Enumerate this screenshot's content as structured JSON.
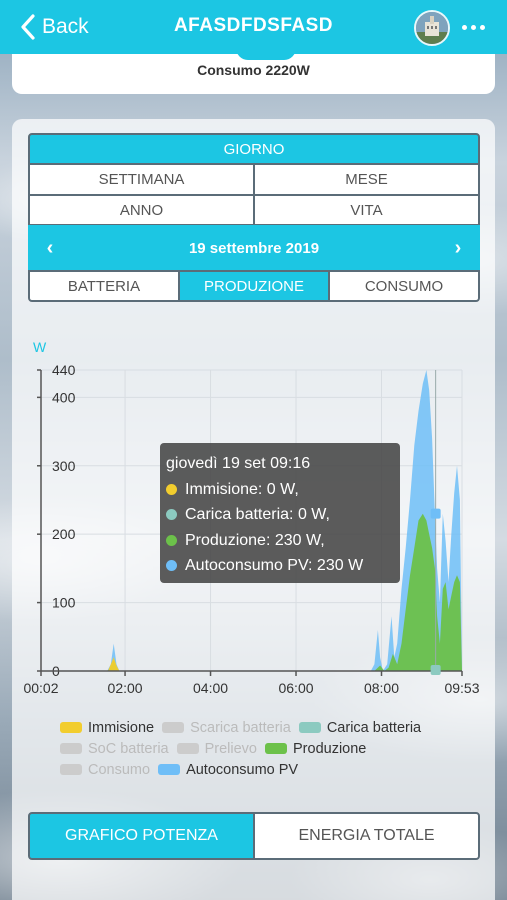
{
  "header": {
    "back_label": "Back",
    "title": "AFASDFDSFASD",
    "avatar_icon": "building-photo-avatar",
    "menu_icon": "more-horizontal-icon",
    "color": "#1cc6e3"
  },
  "summary": {
    "consumo": "Consumo  2220W"
  },
  "period": {
    "options": [
      "GIORNO",
      "SETTIMANA",
      "MESE",
      "ANNO",
      "VITA"
    ],
    "selected": "GIORNO",
    "date": "19 settembre 2019",
    "prev_icon": "chevron-left-icon",
    "next_icon": "chevron-right-icon"
  },
  "tabs": {
    "items": [
      "BATTERIA",
      "PRODUZIONE",
      "CONSUMO"
    ],
    "selected": "PRODUZIONE"
  },
  "tooltip": {
    "title": "giovedì 19 set 09:16",
    "rows": [
      {
        "label": "Immisione: 0 W,",
        "color": "#f2cd2e"
      },
      {
        "label": "Carica batteria: 0 W,",
        "color": "#8ccac0"
      },
      {
        "label": "Produzione: 230 W,",
        "color": "#6cc14a"
      },
      {
        "label": "Autoconsumo PV: 230 W",
        "color": "#6fbef7"
      }
    ]
  },
  "legend": [
    {
      "label": "Immisione",
      "color": "#f2cd2e",
      "active": true
    },
    {
      "label": "Scarica batteria",
      "color": "#cccccc",
      "active": false
    },
    {
      "label": "Carica batteria",
      "color": "#8ccac0",
      "active": true
    },
    {
      "label": "SoC batteria",
      "color": "#cccccc",
      "active": false
    },
    {
      "label": "Prelievo",
      "color": "#cccccc",
      "active": false
    },
    {
      "label": "Produzione",
      "color": "#6cc14a",
      "active": true
    },
    {
      "label": "Consumo",
      "color": "#cccccc",
      "active": false
    },
    {
      "label": "Autoconsumo PV",
      "color": "#6fbef7",
      "active": true
    }
  ],
  "bottom_buttons": {
    "items": [
      "GRAFICO POTENZA",
      "ENERGIA TOTALE"
    ],
    "selected": "GRAFICO POTENZA"
  },
  "chart_data": {
    "type": "area",
    "ylabel": "W",
    "ylim": [
      0,
      440
    ],
    "yticks": [
      "0",
      "100",
      "200",
      "300",
      "400",
      "440"
    ],
    "xticks": [
      "00:02",
      "02:00",
      "04:00",
      "06:00",
      "08:00",
      "09:53"
    ],
    "xrange_minutes": [
      2,
      593
    ],
    "grid": true,
    "cursor_time_minutes": 556,
    "series": [
      {
        "name": "Autoconsumo PV",
        "color": "#6fbef7",
        "points": [
          [
            2,
            0
          ],
          [
            95,
            0
          ],
          [
            100,
            10
          ],
          [
            104,
            40
          ],
          [
            108,
            10
          ],
          [
            112,
            0
          ],
          [
            465,
            0
          ],
          [
            470,
            10
          ],
          [
            475,
            60
          ],
          [
            478,
            20
          ],
          [
            482,
            0
          ],
          [
            488,
            10
          ],
          [
            494,
            80
          ],
          [
            498,
            20
          ],
          [
            502,
            40
          ],
          [
            508,
            120
          ],
          [
            514,
            180
          ],
          [
            520,
            250
          ],
          [
            526,
            330
          ],
          [
            532,
            380
          ],
          [
            538,
            420
          ],
          [
            543,
            440
          ],
          [
            547,
            410
          ],
          [
            551,
            340
          ],
          [
            555,
            230
          ],
          [
            558,
            150
          ],
          [
            562,
            100
          ],
          [
            566,
            230
          ],
          [
            570,
            190
          ],
          [
            574,
            130
          ],
          [
            578,
            200
          ],
          [
            582,
            260
          ],
          [
            586,
            300
          ],
          [
            590,
            250
          ],
          [
            593,
            0
          ]
        ]
      },
      {
        "name": "Produzione",
        "color": "#6cc14a",
        "points": [
          [
            2,
            0
          ],
          [
            95,
            0
          ],
          [
            100,
            5
          ],
          [
            104,
            15
          ],
          [
            108,
            5
          ],
          [
            112,
            0
          ],
          [
            470,
            0
          ],
          [
            478,
            8
          ],
          [
            484,
            0
          ],
          [
            490,
            5
          ],
          [
            496,
            25
          ],
          [
            502,
            10
          ],
          [
            508,
            40
          ],
          [
            514,
            90
          ],
          [
            520,
            140
          ],
          [
            526,
            180
          ],
          [
            532,
            220
          ],
          [
            538,
            230
          ],
          [
            543,
            220
          ],
          [
            547,
            200
          ],
          [
            551,
            180
          ],
          [
            555,
            150
          ],
          [
            558,
            80
          ],
          [
            562,
            40
          ],
          [
            566,
            120
          ],
          [
            570,
            130
          ],
          [
            574,
            90
          ],
          [
            578,
            110
          ],
          [
            582,
            130
          ],
          [
            586,
            140
          ],
          [
            590,
            130
          ],
          [
            593,
            0
          ]
        ]
      },
      {
        "name": "Immisione",
        "color": "#f2cd2e",
        "points": [
          [
            2,
            0
          ],
          [
            96,
            0
          ],
          [
            100,
            10
          ],
          [
            104,
            20
          ],
          [
            108,
            8
          ],
          [
            112,
            0
          ],
          [
            593,
            0
          ]
        ]
      }
    ]
  }
}
